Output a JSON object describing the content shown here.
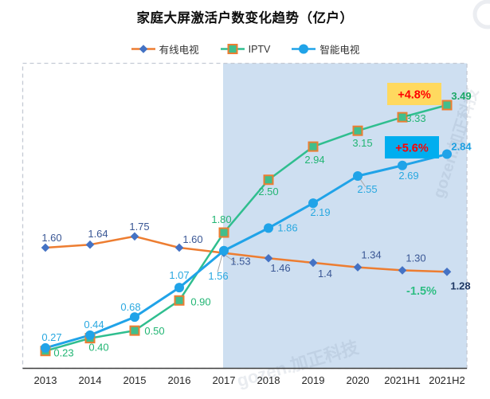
{
  "page_title": "家庭大屏激活户数变化趋势（亿户）",
  "watermark_text": "gozen.加正科技",
  "chart_data": {
    "type": "line",
    "title": "家庭大屏激活户数变化趋势（亿户）",
    "xlabel": "",
    "ylabel": "",
    "ylim": [
      0,
      4.05
    ],
    "grid": false,
    "legend_position": "top",
    "categories": [
      "2013",
      "2014",
      "2015",
      "2016",
      "2017",
      "2018",
      "2019",
      "2020",
      "2021H1",
      "2021H2"
    ],
    "highlight_region": {
      "from_category": "2017",
      "to_end": true,
      "color": "#CEDFF1"
    },
    "series": [
      {
        "name": "有线电视",
        "values": [
          1.6,
          1.64,
          1.75,
          1.6,
          1.53,
          1.46,
          1.4,
          1.34,
          1.3,
          1.28
        ],
        "labels": [
          "1.60",
          "1.64",
          "1.75",
          "1.60",
          "1.53",
          "1.46",
          "1.4",
          "1.34",
          "1.30",
          "1.28"
        ],
        "line_color": "#ED7D31",
        "marker": "diamond",
        "marker_color": "#4472C4",
        "label_color": "#3A5795",
        "final_label_color": "#1F3864",
        "growth": {
          "text": "-1.5%",
          "style": "plain",
          "text_color": "#2FBE84"
        }
      },
      {
        "name": "IPTV",
        "values": [
          0.23,
          0.4,
          0.5,
          0.9,
          1.8,
          2.5,
          2.94,
          3.15,
          3.33,
          3.49
        ],
        "labels": [
          "0.23",
          "0.40",
          "0.50",
          "0.90",
          "1.80",
          "2.50",
          "2.94",
          "3.15",
          "3.33",
          "3.49"
        ],
        "line_color": "#2FBE8F",
        "marker": "square",
        "marker_color": "#41BE8C",
        "marker_border": "#ED7D31",
        "label_color": "#21B573",
        "final_label_color": "#1DA868",
        "growth": {
          "text": "+4.8%",
          "style": "box",
          "box_color": "#FFD95F",
          "text_color": "#FF0000"
        }
      },
      {
        "name": "智能电视",
        "values": [
          0.27,
          0.44,
          0.68,
          1.07,
          1.56,
          1.86,
          2.19,
          2.55,
          2.69,
          2.84
        ],
        "labels": [
          "0.27",
          "0.44",
          "0.68",
          "1.07",
          "1.56",
          "1.86",
          "2.19",
          "2.55",
          "2.69",
          "2.84"
        ],
        "line_color": "#20A3E8",
        "marker": "circle",
        "marker_color": "#20A3E8",
        "label_color": "#29A8E0",
        "final_label_color": "#1D9FE0",
        "growth": {
          "text": "+5.6%",
          "style": "box",
          "box_color": "#00AEEF",
          "text_color": "#FF0000"
        }
      }
    ]
  }
}
